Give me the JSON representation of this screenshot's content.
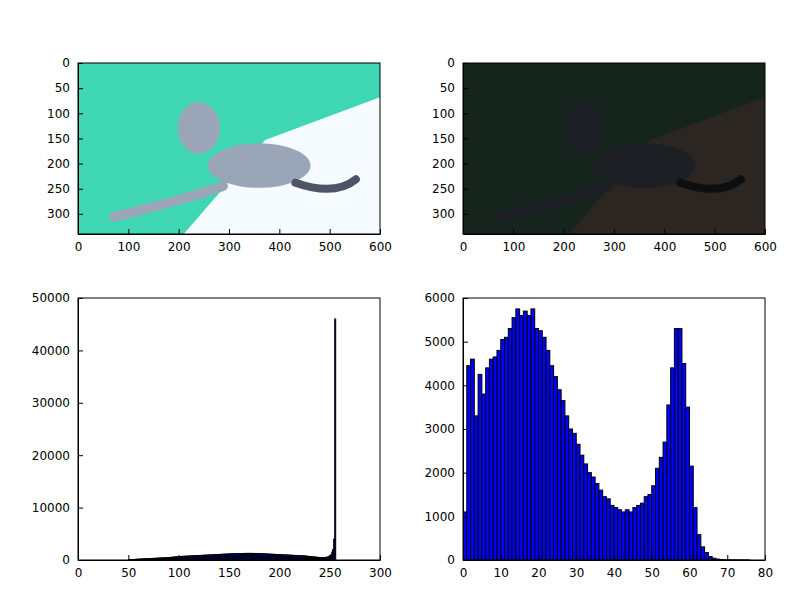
{
  "chart_data": [
    {
      "type": "image",
      "xlim": [
        0,
        600
      ],
      "ylim": [
        340,
        0
      ],
      "xticks": [
        0,
        100,
        200,
        300,
        400,
        500,
        600
      ],
      "yticks": [
        0,
        50,
        100,
        150,
        200,
        250,
        300
      ]
    },
    {
      "type": "image",
      "xlim": [
        0,
        600
      ],
      "ylim": [
        340,
        0
      ],
      "xticks": [
        0,
        100,
        200,
        300,
        400,
        500,
        600
      ],
      "yticks": [
        0,
        50,
        100,
        150,
        200,
        250,
        300
      ]
    },
    {
      "type": "histogram",
      "color": "#0000ff",
      "xlim": [
        0,
        300
      ],
      "ylim": [
        0,
        50000
      ],
      "xticks": [
        0,
        50,
        100,
        150,
        200,
        250,
        300
      ],
      "yticks": [
        0,
        10000,
        20000,
        30000,
        40000,
        50000
      ],
      "bins": [
        0,
        1,
        2,
        3,
        4,
        5,
        6,
        7,
        8,
        9,
        10,
        11,
        12,
        13,
        14,
        15,
        16,
        17,
        18,
        19,
        20,
        21,
        22,
        23,
        24,
        25,
        26,
        27,
        28,
        29,
        30,
        31,
        32,
        33,
        34,
        35,
        36,
        37,
        38,
        39,
        40,
        41,
        42,
        43,
        44,
        45,
        46,
        47,
        48,
        49,
        50,
        51,
        52,
        53,
        54,
        55,
        56,
        57,
        58,
        59,
        60,
        61,
        62,
        63,
        64,
        65,
        66,
        67,
        68,
        69,
        70,
        71,
        72,
        73,
        74,
        75,
        76,
        77,
        78,
        79,
        80,
        81,
        82,
        83,
        84,
        85,
        86,
        87,
        88,
        89,
        90,
        91,
        92,
        93,
        94,
        95,
        96,
        97,
        98,
        99,
        100,
        101,
        102,
        103,
        104,
        105,
        106,
        107,
        108,
        109,
        110,
        111,
        112,
        113,
        114,
        115,
        116,
        117,
        118,
        119,
        120,
        121,
        122,
        123,
        124,
        125,
        126,
        127,
        128,
        129,
        130,
        131,
        132,
        133,
        134,
        135,
        136,
        137,
        138,
        139,
        140,
        141,
        142,
        143,
        144,
        145,
        146,
        147,
        148,
        149,
        150,
        151,
        152,
        153,
        154,
        155,
        156,
        157,
        158,
        159,
        160,
        161,
        162,
        163,
        164,
        165,
        166,
        167,
        168,
        169,
        170,
        171,
        172,
        173,
        174,
        175,
        176,
        177,
        178,
        179,
        180,
        181,
        182,
        183,
        184,
        185,
        186,
        187,
        188,
        189,
        190,
        191,
        192,
        193,
        194,
        195,
        196,
        197,
        198,
        199,
        200,
        201,
        202,
        203,
        204,
        205,
        206,
        207,
        208,
        209,
        210,
        211,
        212,
        213,
        214,
        215,
        216,
        217,
        218,
        219,
        220,
        221,
        222,
        223,
        224,
        225,
        226,
        227,
        228,
        229,
        230,
        231,
        232,
        233,
        234,
        235,
        236,
        237,
        238,
        239,
        240,
        241,
        242,
        243,
        244,
        245,
        246,
        247,
        248,
        249,
        250,
        251,
        252,
        253,
        254,
        255,
        256
      ],
      "values": [
        0,
        0,
        0,
        0,
        0,
        0,
        0,
        0,
        0,
        0,
        0,
        0,
        0,
        0,
        0,
        0,
        0,
        0,
        0,
        0,
        0,
        0,
        0,
        0,
        0,
        0,
        0,
        0,
        0,
        0,
        0,
        0,
        0,
        0,
        0,
        0,
        0,
        0,
        0,
        0,
        0,
        0,
        0,
        0,
        0,
        0,
        0,
        0,
        0,
        0,
        50,
        60,
        70,
        80,
        90,
        100,
        110,
        120,
        140,
        150,
        160,
        170,
        180,
        190,
        200,
        210,
        220,
        230,
        240,
        250,
        260,
        270,
        280,
        290,
        300,
        310,
        320,
        330,
        340,
        350,
        360,
        370,
        380,
        390,
        400,
        410,
        420,
        430,
        440,
        450,
        460,
        480,
        500,
        520,
        540,
        560,
        580,
        600,
        620,
        640,
        660,
        670,
        680,
        690,
        700,
        710,
        720,
        730,
        740,
        750,
        760,
        770,
        780,
        790,
        800,
        810,
        820,
        830,
        840,
        850,
        860,
        870,
        880,
        890,
        900,
        910,
        920,
        930,
        940,
        950,
        960,
        970,
        980,
        990,
        1000,
        1010,
        1020,
        1030,
        1040,
        1050,
        1060,
        1070,
        1080,
        1090,
        1100,
        1110,
        1120,
        1130,
        1140,
        1150,
        1160,
        1170,
        1180,
        1190,
        1200,
        1200,
        1210,
        1210,
        1220,
        1220,
        1230,
        1230,
        1240,
        1240,
        1250,
        1250,
        1250,
        1260,
        1260,
        1260,
        1260,
        1260,
        1260,
        1250,
        1250,
        1250,
        1240,
        1240,
        1230,
        1230,
        1220,
        1210,
        1200,
        1190,
        1180,
        1170,
        1160,
        1150,
        1140,
        1130,
        1120,
        1110,
        1100,
        1090,
        1080,
        1070,
        1060,
        1050,
        1040,
        1030,
        1020,
        1010,
        1000,
        990,
        980,
        970,
        960,
        950,
        940,
        930,
        920,
        910,
        900,
        890,
        880,
        870,
        860,
        850,
        840,
        830,
        820,
        810,
        800,
        790,
        780,
        760,
        740,
        720,
        700,
        680,
        660,
        640,
        620,
        600,
        580,
        560,
        540,
        520,
        500,
        480,
        470,
        460,
        450,
        450,
        460,
        480,
        500,
        550,
        600,
        700,
        800,
        1000,
        1500,
        2000,
        4000,
        46000
      ]
    },
    {
      "type": "histogram",
      "color": "#0000ff",
      "xlim": [
        0,
        80
      ],
      "ylim": [
        0,
        6000
      ],
      "xticks": [
        0,
        10,
        20,
        30,
        40,
        50,
        60,
        70,
        80
      ],
      "yticks": [
        0,
        1000,
        2000,
        3000,
        4000,
        5000,
        6000
      ],
      "bins": [
        0,
        1,
        2,
        3,
        4,
        5,
        6,
        7,
        8,
        9,
        10,
        11,
        12,
        13,
        14,
        15,
        16,
        17,
        18,
        19,
        20,
        21,
        22,
        23,
        24,
        25,
        26,
        27,
        28,
        29,
        30,
        31,
        32,
        33,
        34,
        35,
        36,
        37,
        38,
        39,
        40,
        41,
        42,
        43,
        44,
        45,
        46,
        47,
        48,
        49,
        50,
        51,
        52,
        53,
        54,
        55,
        56,
        57,
        58,
        59,
        60,
        61,
        62,
        63,
        64,
        65,
        66,
        67,
        68,
        69,
        70,
        71,
        72,
        73,
        74,
        75,
        76
      ],
      "values": [
        1100,
        4450,
        4600,
        3300,
        4250,
        3800,
        4400,
        4600,
        4650,
        4800,
        5050,
        5100,
        5300,
        5550,
        5750,
        5600,
        5700,
        5600,
        5750,
        5300,
        5250,
        5100,
        4800,
        4450,
        4200,
        3900,
        3650,
        3300,
        3000,
        2900,
        2650,
        2400,
        2200,
        2000,
        1900,
        1750,
        1600,
        1450,
        1400,
        1250,
        1200,
        1150,
        1100,
        1150,
        1100,
        1200,
        1250,
        1300,
        1450,
        1500,
        1700,
        2100,
        2350,
        2700,
        3550,
        4400,
        5300,
        5300,
        4500,
        3500,
        2150,
        1200,
        580,
        300,
        170,
        80,
        40,
        20,
        10,
        5,
        5,
        3,
        2,
        2,
        1,
        1
      ]
    }
  ]
}
